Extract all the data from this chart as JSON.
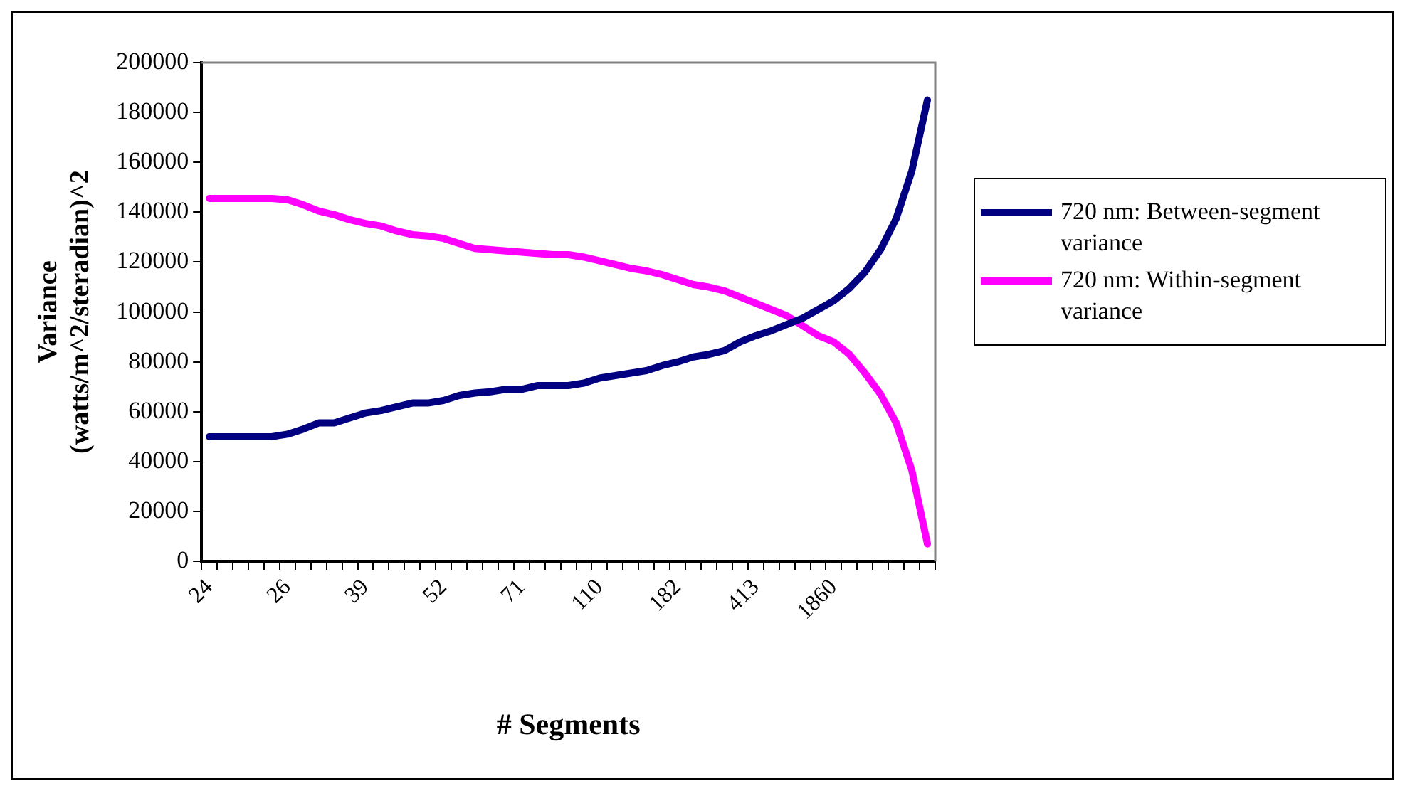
{
  "chart_data": {
    "type": "line",
    "xlabel": "# Segments",
    "ylabel": "Variance\n(watts/m^2/steradian)^2",
    "categories": [
      "24",
      null,
      null,
      null,
      null,
      "26",
      null,
      null,
      null,
      null,
      "39",
      null,
      null,
      null,
      null,
      "52",
      null,
      null,
      null,
      null,
      "71",
      null,
      null,
      null,
      null,
      "110",
      null,
      null,
      null,
      null,
      "182",
      null,
      null,
      null,
      null,
      "413",
      null,
      null,
      null,
      null,
      "1860",
      null,
      null,
      null,
      null,
      null,
      null
    ],
    "series": [
      {
        "name": "720 nm: Between-segment variance",
        "color": "#000080",
        "values": [
          50000,
          50000,
          50000,
          50000,
          50000,
          51000,
          53000,
          55500,
          55500,
          57500,
          59500,
          60500,
          62000,
          63500,
          63500,
          64500,
          66500,
          67500,
          68000,
          69000,
          69000,
          70500,
          70500,
          70500,
          71500,
          73500,
          74500,
          75500,
          76500,
          78500,
          80000,
          82000,
          83000,
          84500,
          88000,
          90500,
          92500,
          95000,
          97500,
          101000,
          104500,
          109500,
          116000,
          125000,
          137500,
          156500,
          185000
        ]
      },
      {
        "name": "720 nm: Within-segment variance",
        "color": "#ff00ff",
        "values": [
          145500,
          145500,
          145500,
          145500,
          145500,
          145000,
          143000,
          140500,
          139000,
          137000,
          135500,
          134500,
          132500,
          131000,
          130500,
          129500,
          127500,
          125500,
          125000,
          124500,
          124000,
          123500,
          123000,
          123000,
          122000,
          120500,
          119000,
          117500,
          116500,
          115000,
          113000,
          111000,
          110000,
          108500,
          106000,
          103500,
          101000,
          98500,
          94500,
          90500,
          88000,
          83000,
          75500,
          67000,
          55500,
          36500,
          7000
        ]
      }
    ],
    "ylim": [
      0,
      200000
    ],
    "yticks": [
      0,
      20000,
      40000,
      60000,
      80000,
      100000,
      120000,
      140000,
      160000,
      180000,
      200000
    ],
    "grid": false,
    "legend": "right",
    "marker": "none",
    "line_style": "solid"
  }
}
